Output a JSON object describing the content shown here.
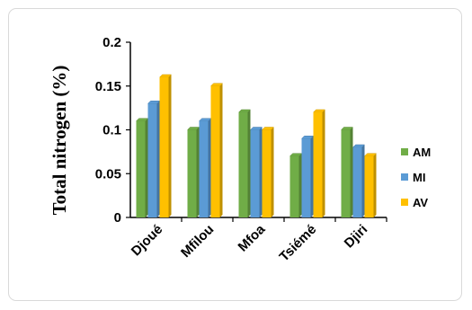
{
  "chart_data": {
    "type": "bar",
    "title": "",
    "xlabel": "",
    "ylabel": "Total nitrogen (%)",
    "categories": [
      "Djoué",
      "Mfilou",
      "Mfoa",
      "Tsiémé",
      "Djiri"
    ],
    "series": [
      {
        "name": "AM",
        "values": [
          0.11,
          0.1,
          0.12,
          0.07,
          0.1
        ],
        "color": "#70ad47"
      },
      {
        "name": "MI",
        "values": [
          0.13,
          0.11,
          0.1,
          0.09,
          0.08
        ],
        "color": "#5b9bd5"
      },
      {
        "name": "AV",
        "values": [
          0.16,
          0.15,
          0.1,
          0.12,
          0.07
        ],
        "color": "#ffc000"
      }
    ],
    "ylim": [
      0,
      0.2
    ],
    "yticks": [
      "0",
      "0.05",
      "0.1",
      "0.15",
      "0.2"
    ],
    "grid": false,
    "legend_position": "right"
  }
}
